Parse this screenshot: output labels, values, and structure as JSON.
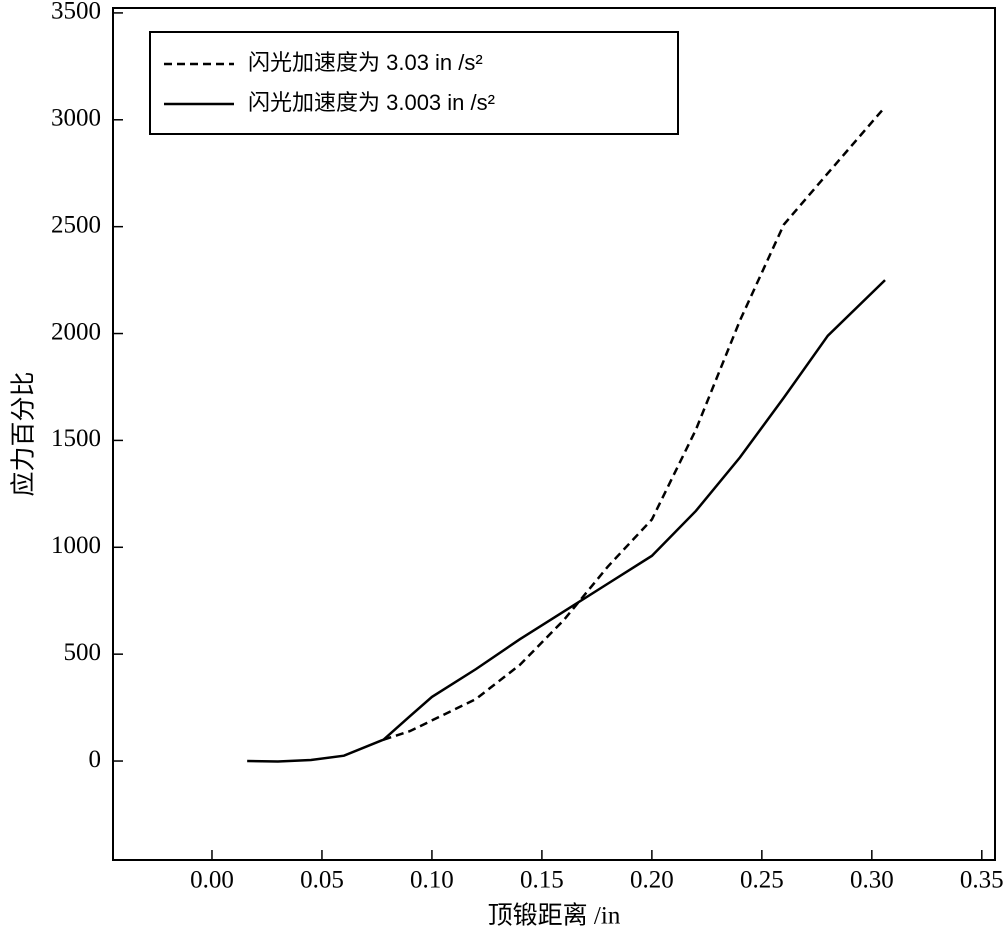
{
  "chart_data": {
    "type": "line",
    "x_label": "顶锻距离 /in",
    "y_label": "应力百分比",
    "x": [
      0.016,
      0.03,
      0.045,
      0.06,
      0.078,
      0.09,
      0.1,
      0.12,
      0.14,
      0.16,
      0.18,
      0.2,
      0.22,
      0.24,
      0.26,
      0.28,
      0.306
    ],
    "series": [
      {
        "name": "闪光加速度为 3.03 in /s²",
        "color": "#000000",
        "dash": true,
        "values": [
          null,
          null,
          null,
          null,
          100,
          140,
          190,
          290,
          450,
          660,
          910,
          1130,
          1550,
          2060,
          2510,
          2750,
          3060
        ]
      },
      {
        "name": "闪光加速度为 3.003 in /s²",
        "color": "#000000",
        "dash": false,
        "values": [
          0,
          -2,
          5,
          25,
          100,
          210,
          300,
          430,
          570,
          700,
          830,
          960,
          1170,
          1420,
          1700,
          1990,
          2250
        ]
      }
    ],
    "xlim": [
      -0.045,
      0.356
    ],
    "ylim": [
      -463,
      3523
    ],
    "xticks": [
      {
        "value": 0,
        "label": "0.00"
      },
      {
        "value": 0.05,
        "label": "0.05"
      },
      {
        "value": 0.1,
        "label": "0.10"
      },
      {
        "value": 0.15,
        "label": "0.15"
      },
      {
        "value": 0.2,
        "label": "0.20"
      },
      {
        "value": 0.25,
        "label": "0.25"
      },
      {
        "value": 0.3,
        "label": "0.30"
      },
      {
        "value": 0.35,
        "label": "0.35"
      }
    ],
    "yticks": [
      0,
      500,
      1000,
      1500,
      2000,
      2500,
      3000,
      3500
    ],
    "legend": "upper left"
  }
}
